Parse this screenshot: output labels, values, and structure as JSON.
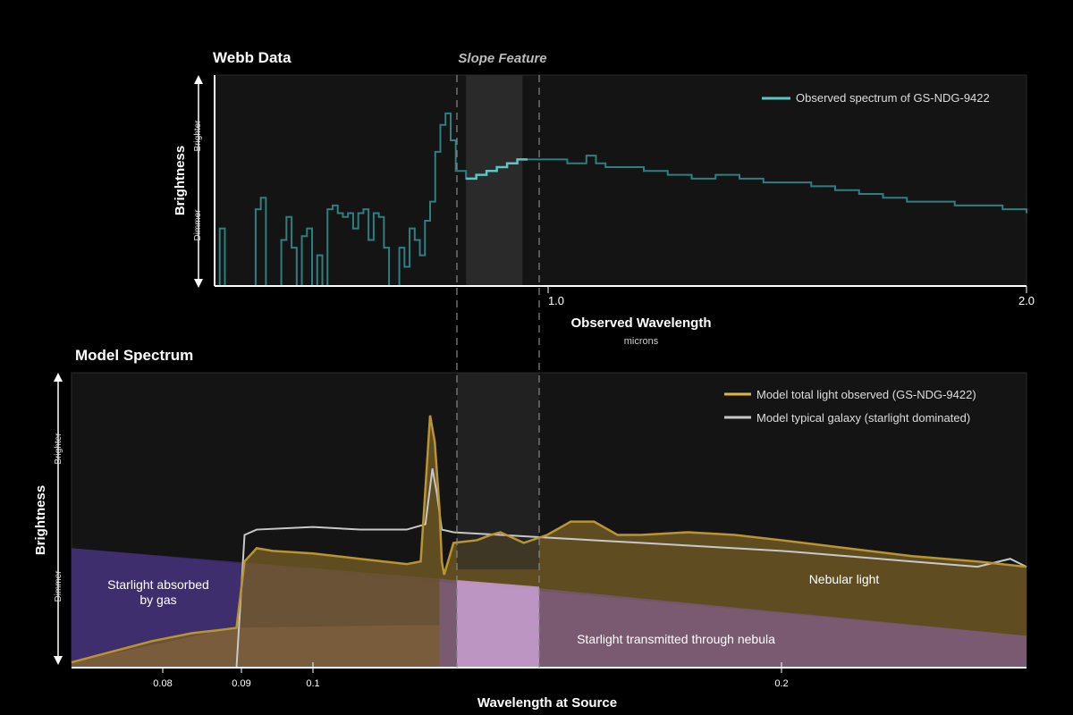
{
  "figure": {
    "slope_label": "Slope Feature"
  },
  "colors": {
    "background": "#000000",
    "panel": "#141414",
    "slope_band": "#2a2a2a",
    "observed": "#2f7f80",
    "observed_bright": "#5ec4c4",
    "model_total": "#b99433",
    "model_total_bright": "#f0d050",
    "typical": "#c8c8c8",
    "nebular_fill": "#7a5f25",
    "absorbed_fill": "#3a2a6c",
    "transmitted_fill": "#7a5a86",
    "transmitted_highlight": "#c8a0d0"
  },
  "chart_data": [
    {
      "type": "line",
      "title": "Webb Data",
      "xlabel": "Observed Wavelength",
      "xunit": "microns",
      "ylabel": "Brightness",
      "y_high_label": "Brighter",
      "y_low_label": "Dimmer",
      "xlim": [
        0.35,
        2.0
      ],
      "x_ticks": [
        "1.0",
        "2.0"
      ],
      "x_tick_values": [
        1.0,
        2.0
      ],
      "slope_feature_x": [
        0.84,
        0.95
      ],
      "legend": "top-right",
      "grid": false,
      "series": [
        {
          "name": "Observed spectrum of GS-NDG-9422",
          "x": [
            0.35,
            0.36,
            0.37,
            0.38,
            0.39,
            0.4,
            0.41,
            0.42,
            0.43,
            0.44,
            0.45,
            0.46,
            0.47,
            0.48,
            0.49,
            0.5,
            0.51,
            0.52,
            0.53,
            0.54,
            0.55,
            0.56,
            0.57,
            0.58,
            0.59,
            0.6,
            0.61,
            0.62,
            0.63,
            0.64,
            0.65,
            0.66,
            0.67,
            0.68,
            0.69,
            0.7,
            0.71,
            0.72,
            0.73,
            0.74,
            0.75,
            0.76,
            0.77,
            0.78,
            0.79,
            0.8,
            0.81,
            0.82,
            0.83,
            0.84,
            0.86,
            0.88,
            0.9,
            0.92,
            0.94,
            0.96,
            1.0,
            1.04,
            1.08,
            1.1,
            1.12,
            1.16,
            1.2,
            1.25,
            1.3,
            1.35,
            1.4,
            1.45,
            1.5,
            1.55,
            1.6,
            1.65,
            1.7,
            1.75,
            1.8,
            1.85,
            1.9,
            1.95,
            2.0
          ],
          "y": [
            0.0,
            0.15,
            0.0,
            0.0,
            0.0,
            0.0,
            0.0,
            0.0,
            0.2,
            0.23,
            0.0,
            0.0,
            0.0,
            0.12,
            0.18,
            0.1,
            0.0,
            0.13,
            0.15,
            0.0,
            0.08,
            0.0,
            0.2,
            0.21,
            0.19,
            0.18,
            0.19,
            0.15,
            0.19,
            0.2,
            0.12,
            0.19,
            0.18,
            0.1,
            0.0,
            0.0,
            0.1,
            0.05,
            0.15,
            0.12,
            0.08,
            0.17,
            0.22,
            0.35,
            0.42,
            0.45,
            0.38,
            0.3,
            0.3,
            0.28,
            0.29,
            0.3,
            0.31,
            0.32,
            0.33,
            0.33,
            0.33,
            0.32,
            0.34,
            0.32,
            0.31,
            0.31,
            0.3,
            0.29,
            0.28,
            0.29,
            0.28,
            0.27,
            0.27,
            0.26,
            0.25,
            0.24,
            0.23,
            0.22,
            0.22,
            0.21,
            0.21,
            0.2,
            0.19
          ],
          "ylim": [
            0,
            0.55
          ]
        }
      ]
    },
    {
      "type": "area",
      "title": "Model Spectrum",
      "xlabel": "Wavelength at Source",
      "ylabel": "Brightness",
      "y_high_label": "Brighter",
      "y_low_label": "Dimmer",
      "xlim": [
        0.07,
        0.275
      ],
      "x_ticks": [
        "0.08",
        "0.09",
        "0.1",
        "0.2"
      ],
      "x_tick_values": [
        0.0795,
        0.0925,
        0.1,
        0.2
      ],
      "legend": "top-right",
      "grid": false,
      "annotations": [
        "Starlight absorbed\nby gas",
        "Nebular light",
        "Starlight transmitted through nebula"
      ],
      "series": [
        {
          "name": "Model total light observed (GS-NDG-9422)",
          "x": [
            0.07,
            0.075,
            0.08,
            0.085,
            0.088,
            0.0905,
            0.0915,
            0.093,
            0.095,
            0.1,
            0.11,
            0.12,
            0.123,
            0.125,
            0.126,
            0.127,
            0.1275,
            0.128,
            0.13,
            0.135,
            0.138,
            0.14,
            0.145,
            0.15,
            0.155,
            0.16,
            0.165,
            0.17,
            0.18,
            0.19,
            0.2,
            0.22,
            0.24,
            0.26,
            0.275
          ],
          "y": [
            0.02,
            0.06,
            0.1,
            0.13,
            0.14,
            0.15,
            0.4,
            0.45,
            0.44,
            0.43,
            0.41,
            0.39,
            0.4,
            0.95,
            0.85,
            0.6,
            0.4,
            0.35,
            0.47,
            0.48,
            0.5,
            0.51,
            0.47,
            0.5,
            0.55,
            0.55,
            0.5,
            0.5,
            0.51,
            0.5,
            0.48,
            0.45,
            0.42,
            0.4,
            0.38
          ],
          "ylim": [
            0,
            1
          ]
        },
        {
          "name": "Model typical galaxy (starlight dominated)",
          "x": [
            0.0905,
            0.0915,
            0.093,
            0.1,
            0.11,
            0.12,
            0.124,
            0.1255,
            0.1265,
            0.1275,
            0.13,
            0.14,
            0.15,
            0.16,
            0.17,
            0.18,
            0.19,
            0.2,
            0.22,
            0.24,
            0.26,
            0.27,
            0.275
          ],
          "y": [
            0.0,
            0.5,
            0.52,
            0.53,
            0.52,
            0.52,
            0.54,
            0.75,
            0.65,
            0.52,
            0.51,
            0.5,
            0.49,
            0.48,
            0.47,
            0.46,
            0.45,
            0.44,
            0.42,
            0.4,
            0.38,
            0.41,
            0.38
          ],
          "ylim": [
            0,
            1
          ]
        }
      ]
    }
  ],
  "webb": {
    "title": "Webb Data",
    "ylabel": "Brightness",
    "brighter": "Brighter",
    "dimmer": "Dimmer",
    "xlabel": "Observed Wavelength",
    "xunit": "microns",
    "tick_1": "1.0",
    "tick_2": "2.0",
    "legend_label": "Observed spectrum of GS-NDG-9422"
  },
  "model": {
    "title": "Model Spectrum",
    "ylabel": "Brightness",
    "brighter": "Brighter",
    "dimmer": "Dimmer",
    "xlabel": "Wavelength at Source",
    "tick_008": "0.08",
    "tick_009": "0.09",
    "tick_01": "0.1",
    "tick_02": "0.2",
    "legend_total": "Model total light observed (GS-NDG-9422)",
    "legend_typical": "Model typical galaxy (starlight dominated)",
    "absorbed_line1": "Starlight absorbed",
    "absorbed_line2": "by gas",
    "nebular": "Nebular light",
    "transmitted": "Starlight transmitted through nebula"
  }
}
